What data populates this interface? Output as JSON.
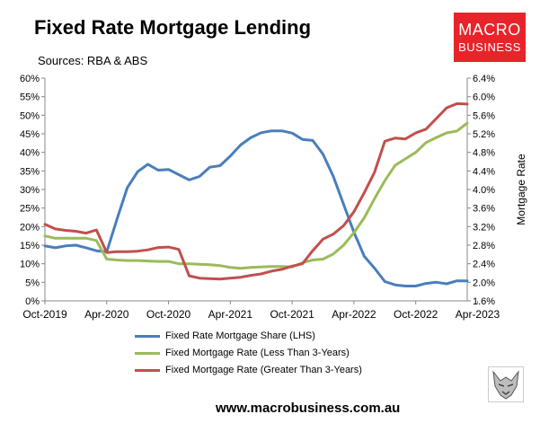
{
  "header": {
    "title": "Fixed Rate Mortgage Lending",
    "source": "Sources: RBA & ABS"
  },
  "logo": {
    "line1": "MACRO",
    "line2": "BUSINESS"
  },
  "footer": {
    "website": "www.macrobusiness.com.au"
  },
  "chart_data": {
    "type": "line",
    "title": "Fixed Rate Mortgage Lending",
    "ylabel_right": "Mortgage Rate",
    "x": [
      "2019-10",
      "2019-11",
      "2019-12",
      "2020-01",
      "2020-02",
      "2020-03",
      "2020-04",
      "2020-05",
      "2020-06",
      "2020-07",
      "2020-08",
      "2020-09",
      "2020-10",
      "2020-11",
      "2020-12",
      "2021-01",
      "2021-02",
      "2021-03",
      "2021-04",
      "2021-05",
      "2021-06",
      "2021-07",
      "2021-08",
      "2021-09",
      "2021-10",
      "2021-11",
      "2021-12",
      "2022-01",
      "2022-02",
      "2022-03",
      "2022-04",
      "2022-05",
      "2022-06",
      "2022-07",
      "2022-08",
      "2022-09",
      "2022-10",
      "2022-11",
      "2022-12",
      "2023-01",
      "2023-02",
      "2023-03"
    ],
    "x_tick_labels": [
      "Oct-2019",
      "Apr-2020",
      "Oct-2020",
      "Apr-2021",
      "Oct-2021",
      "Apr-2022",
      "Oct-2022",
      "Apr-2023"
    ],
    "y_left": {
      "ticks": [
        "0%",
        "5%",
        "10%",
        "15%",
        "20%",
        "25%",
        "30%",
        "35%",
        "40%",
        "45%",
        "50%",
        "55%",
        "60%"
      ],
      "min": 0,
      "max": 60
    },
    "y_right": {
      "ticks": [
        "1.6%",
        "2.0%",
        "2.4%",
        "2.8%",
        "3.2%",
        "3.6%",
        "4.0%",
        "4.4%",
        "4.8%",
        "5.2%",
        "5.6%",
        "6.0%",
        "6.4%"
      ],
      "min": 1.6,
      "max": 6.4
    },
    "grid": false,
    "legend_position": "bottom",
    "series": [
      {
        "name": "Fixed Rate Mortgage Share (LHS)",
        "axis": "left",
        "color": "#4a7ebb",
        "values": [
          14.8,
          14.3,
          14.8,
          15.0,
          14.3,
          13.5,
          13.2,
          22.0,
          30.5,
          34.8,
          36.8,
          35.2,
          35.4,
          34.0,
          32.6,
          33.5,
          36.0,
          36.4,
          39.0,
          42.0,
          44.0,
          45.3,
          45.8,
          45.8,
          45.2,
          43.5,
          43.2,
          39.5,
          33.5,
          26.0,
          18.5,
          12.0,
          8.8,
          5.2,
          4.3,
          4.0,
          4.0,
          4.7,
          5.0,
          4.6,
          5.4,
          5.4
        ]
      },
      {
        "name": "Fixed Mortgage Rate (Less Than 3-Years)",
        "axis": "right",
        "color": "#9bbb59",
        "values": [
          3.0,
          2.95,
          2.95,
          2.95,
          2.95,
          2.9,
          2.5,
          2.48,
          2.47,
          2.47,
          2.46,
          2.45,
          2.45,
          2.4,
          2.4,
          2.39,
          2.38,
          2.36,
          2.32,
          2.3,
          2.32,
          2.33,
          2.34,
          2.34,
          2.33,
          2.42,
          2.48,
          2.5,
          2.61,
          2.8,
          3.07,
          3.39,
          3.8,
          4.19,
          4.52,
          4.66,
          4.8,
          5.01,
          5.12,
          5.22,
          5.26,
          5.43
        ]
      },
      {
        "name": "Fixed Mortgage Rate (Greater Than 3-Years)",
        "axis": "right",
        "color": "#c0504d",
        "values": [
          3.25,
          3.15,
          3.12,
          3.1,
          3.06,
          3.13,
          2.64,
          2.66,
          2.66,
          2.67,
          2.7,
          2.75,
          2.76,
          2.71,
          2.14,
          2.09,
          2.08,
          2.07,
          2.09,
          2.11,
          2.15,
          2.18,
          2.24,
          2.28,
          2.35,
          2.4,
          2.68,
          2.93,
          3.04,
          3.22,
          3.52,
          3.93,
          4.37,
          5.04,
          5.11,
          5.09,
          5.22,
          5.3,
          5.53,
          5.76,
          5.85,
          5.84
        ]
      }
    ]
  }
}
